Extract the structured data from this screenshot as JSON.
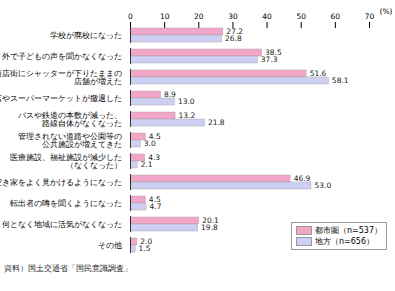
{
  "chart_data": {
    "type": "bar",
    "orientation": "horizontal",
    "categories": [
      "学校が廃校になった",
      "外で子どもの声を聞かなくなった",
      "商店街にシャッターが下りたままの\n店舗が増えた",
      "百貨店やスーパーマーケットが撤退した",
      "バスや鉄道の本数が減った、\n路線自体がなくなった",
      "管理されない道路や公園等の\n公共施設が増えてきた",
      "医療施設、福祉施設が減少した\n（なくなった）",
      "空き家をよく見かけるようになった",
      "転出者の噂を聞くようになった",
      "何となく地域に活気がなくなった",
      "その他"
    ],
    "series": [
      {
        "name": "都市圏（n=537）",
        "color": "#f2a7c9",
        "values": [
          27.2,
          38.5,
          51.6,
          8.9,
          13.2,
          4.5,
          4.3,
          46.9,
          4.5,
          20.1,
          2.0
        ],
        "value_labels": [
          "27.2",
          "38.5",
          "51.6",
          "8.9",
          "13.2",
          "4.5",
          "4.3",
          "46.9",
          "4.5",
          "20.1",
          "2.0"
        ]
      },
      {
        "name": "地方（n=656）",
        "color": "#cdd0f2",
        "values": [
          26.8,
          37.3,
          58.1,
          13.0,
          21.8,
          3.0,
          2.1,
          53.0,
          4.7,
          19.8,
          1.5
        ],
        "value_labels": [
          "26.8",
          "37.3",
          "58.1",
          "13.0",
          "21.8",
          "3.0",
          "2.1",
          "53.0",
          "4.7",
          "19.8",
          "1.5"
        ]
      }
    ],
    "x_label": "(%)",
    "xlim": [
      0,
      70
    ],
    "xticks": [
      0,
      10,
      20,
      30,
      40,
      50,
      60,
      70
    ],
    "data_labels": true,
    "grid": false,
    "legend": "bottom-right",
    "caption": "資料）国土交通省「国民意識調査」"
  }
}
